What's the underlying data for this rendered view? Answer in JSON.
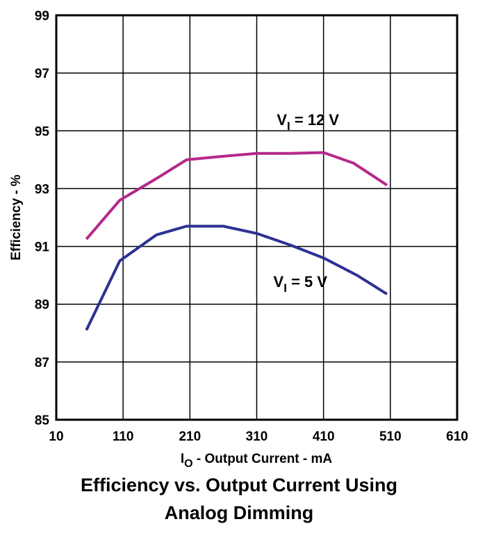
{
  "chart_data": {
    "type": "line",
    "title_lines": [
      "Efficiency vs. Output Current Using",
      "Analog Dimming"
    ],
    "xlabel": {
      "main": "I",
      "sub": "O",
      "rest": " - Output Current - mA"
    },
    "ylabel": "Efficiency - %",
    "xlim": [
      10,
      610
    ],
    "ylim": [
      85,
      99
    ],
    "x_ticks": [
      10,
      110,
      210,
      310,
      410,
      510,
      610
    ],
    "y_ticks": [
      85,
      87,
      89,
      91,
      93,
      95,
      97,
      99
    ],
    "grid": true,
    "series": [
      {
        "name": "VI = 12 V",
        "label": {
          "main": "V",
          "sub": "I",
          "rest": " = 12 V",
          "at": [
            340,
            95.2
          ]
        },
        "color": "#b5288a",
        "x": [
          55,
          105,
          160,
          205,
          260,
          310,
          360,
          410,
          455,
          505
        ],
        "y": [
          91.25,
          92.6,
          93.35,
          94.0,
          94.12,
          94.22,
          94.22,
          94.25,
          93.88,
          93.12
        ]
      },
      {
        "name": "VI = 5 V",
        "label": {
          "main": "V",
          "sub": "I",
          "rest": " = 5 V",
          "at": [
            335,
            89.6
          ]
        },
        "color": "#2e3192",
        "x": [
          55,
          105,
          160,
          205,
          260,
          310,
          360,
          410,
          460,
          505
        ],
        "y": [
          88.1,
          90.5,
          91.4,
          91.7,
          91.7,
          91.45,
          91.05,
          90.6,
          90.0,
          89.35
        ]
      }
    ]
  }
}
